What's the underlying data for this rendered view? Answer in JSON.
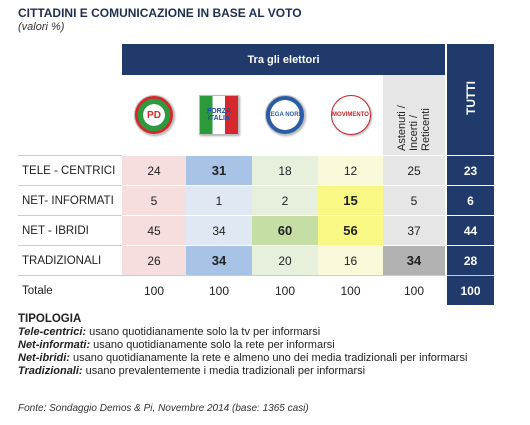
{
  "title": "CITTADINI E COMUNICAZIONE IN BASE AL VOTO",
  "subtitle": "(valori %)",
  "table": {
    "group_header": "Tra gli elettori",
    "total_header": "TUTTI",
    "columns": [
      "PD",
      "FORZA ITALIA",
      "LEGA NORD",
      "MOVIMENTO",
      "Astenuti / Incerti / Reticenti"
    ],
    "rows": [
      {
        "label": "TELE - CENTRICI",
        "values": [
          24,
          31,
          18,
          12,
          25,
          23
        ]
      },
      {
        "label": "NET- INFORMATI",
        "values": [
          5,
          1,
          2,
          15,
          5,
          6
        ]
      },
      {
        "label": "NET - IBRIDI",
        "values": [
          45,
          34,
          60,
          56,
          37,
          44
        ]
      },
      {
        "label": "TRADIZIONALI",
        "values": [
          26,
          34,
          20,
          16,
          34,
          28
        ]
      },
      {
        "label": "Totale",
        "values": [
          100,
          100,
          100,
          100,
          100,
          100
        ]
      }
    ]
  },
  "legend": {
    "title": "TIPOLOGIA",
    "items": [
      {
        "term": "Tele-centrici:",
        "text": "usano quotidianamente solo la tv per informarsi"
      },
      {
        "term": "Net-informati:",
        "text": "usano quotidianamente solo la rete per informarsi"
      },
      {
        "term": "Net-ibridi:",
        "text": "usano quotidianamente la rete e almeno uno dei media tradizionali per informarsi"
      },
      {
        "term": "Tradizionali:",
        "text": "usano prevalentemente i media tradizionali per informarsi"
      }
    ]
  },
  "source": "Fonte: Sondaggio Demos & Pi, Novembre 2014 (base: 1365 casi)"
}
